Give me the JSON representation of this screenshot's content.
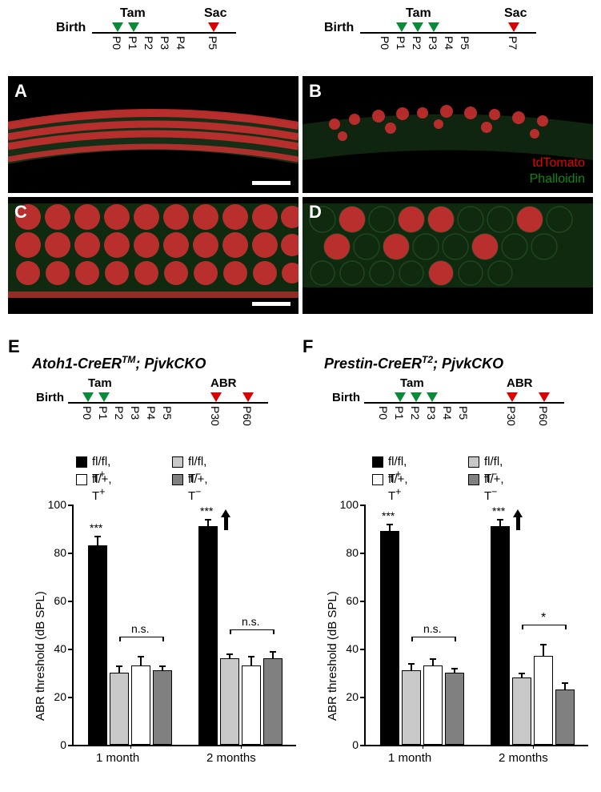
{
  "timelines": {
    "topLeft": {
      "birth": "Birth",
      "tam": "Tam",
      "sac": "Sac",
      "ticks": [
        "P0",
        "P1",
        "P2",
        "P3",
        "P4",
        "P5"
      ],
      "tam_positions": [
        "P0",
        "P1"
      ],
      "sac_position": "P5"
    },
    "topRight": {
      "birth": "Birth",
      "tam": "Tam",
      "sac": "Sac",
      "ticks": [
        "P0",
        "P1",
        "P2",
        "P3",
        "P4",
        "P5",
        "P7"
      ],
      "tam_positions": [
        "P1",
        "P2",
        "P3"
      ],
      "sac_position": "P7"
    },
    "chartE": {
      "birth": "Birth",
      "tam": "Tam",
      "abr": "ABR",
      "ticks": [
        "P0",
        "P1",
        "P2",
        "P3",
        "P4",
        "P5",
        "P30",
        "P60"
      ],
      "tam_positions": [
        "P0",
        "P1"
      ],
      "abr_positions": [
        "P30",
        "P60"
      ]
    },
    "chartF": {
      "birth": "Birth",
      "tam": "Tam",
      "abr": "ABR",
      "ticks": [
        "P0",
        "P1",
        "P2",
        "P3",
        "P4",
        "P5",
        "P30",
        "P60"
      ],
      "tam_positions": [
        "P1",
        "P2",
        "P3"
      ],
      "abr_positions": [
        "P30",
        "P60"
      ]
    }
  },
  "panels": {
    "A": "A",
    "B": "B",
    "C": "C",
    "D": "D",
    "E": "E",
    "F": "F"
  },
  "microLabels": {
    "tdTomato": "tdTomato",
    "phalloidin": "Phalloidin"
  },
  "chartTitles": {
    "E": {
      "pre": "Atoh1-CreER",
      "sup": "TM",
      "post": "; PjvkCKO"
    },
    "F": {
      "pre": "Prestin-CreER",
      "sup": "T2",
      "post": "; PjvkCKO"
    }
  },
  "legend": {
    "flfl_Tp": "fl/fl, T",
    "flfl_Tn": "fl/fl, T",
    "flp_Tp": "fl/+, T",
    "flp_Tn": "fl/+, T",
    "plus": "+",
    "minus": "−"
  },
  "colors": {
    "black": "#000000",
    "lightgrey": "#c8c8c8",
    "white": "#ffffff",
    "darkgrey": "#808080",
    "green_tri": "#0b8a3a",
    "red_tri": "#d80000"
  },
  "chartE_data": {
    "ylabel": "ABR threshold (dB SPL)",
    "yticks": [
      0,
      20,
      40,
      60,
      80,
      100
    ],
    "groups": [
      "1 month",
      "2 months"
    ],
    "series_order": [
      "fl/fl,T+",
      "fl/fl,T-",
      "fl/+,T+",
      "fl/+,T-"
    ],
    "month1": {
      "vals": [
        83,
        30,
        33,
        31
      ],
      "errs": [
        4,
        3,
        4,
        2
      ]
    },
    "month2": {
      "vals": [
        91,
        36,
        33,
        36
      ],
      "errs": [
        3,
        2,
        4,
        3
      ]
    },
    "sig": {
      "m1_main": "***",
      "m1_ns": "n.s.",
      "m2_main": "***",
      "m2_ns": "n.s."
    },
    "arrow_m2": true
  },
  "chartF_data": {
    "ylabel": "ABR threshold (dB SPL)",
    "yticks": [
      0,
      20,
      40,
      60,
      80,
      100
    ],
    "groups": [
      "1 month",
      "2 months"
    ],
    "series_order": [
      "fl/fl,T+",
      "fl/fl,T-",
      "fl/+,T+",
      "fl/+,T-"
    ],
    "month1": {
      "vals": [
        89,
        31,
        33,
        30
      ],
      "errs": [
        3,
        3,
        3,
        2
      ]
    },
    "month2": {
      "vals": [
        91,
        28,
        37,
        23
      ],
      "errs": [
        3,
        2,
        5,
        3
      ]
    },
    "sig": {
      "m1_main": "***",
      "m1_ns": "n.s.",
      "m2_main": "***",
      "m2_star": "*"
    },
    "arrow_m2": true
  },
  "styling": {
    "panel_bg": "#000000",
    "font_family": "Arial",
    "bar_border": 1.5,
    "axis_width": 1.5,
    "fig_width": 751,
    "fig_height": 989
  }
}
